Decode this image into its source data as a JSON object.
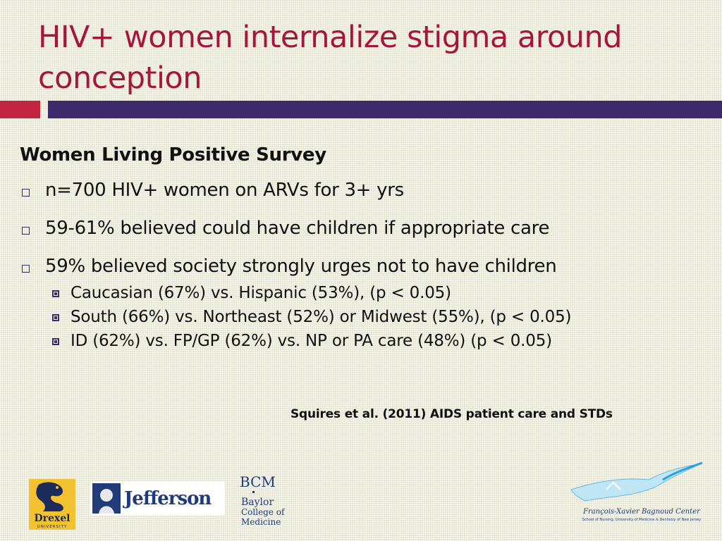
{
  "slide": {
    "title": "HIV+ women internalize stigma around conception",
    "heading": "Women Living Positive Survey",
    "bullets": [
      "n=700 HIV+ women on ARVs for 3+ yrs",
      "59-61% believed could have children if appropriate care",
      "59% believed society strongly urges not to have children"
    ],
    "sub_bullets": [
      "Caucasian (67%) vs. Hispanic (53%), (p < 0.05)",
      "South (66%) vs. Northeast (52%) or Midwest (55%), (p < 0.05)",
      "ID (62%) vs. FP/GP (62%) vs. NP or PA care (48%) (p < 0.05)"
    ],
    "citation": "Squires et al. (2011) AIDS patient care and STDs"
  },
  "logos": {
    "drexel": {
      "name": "Drexel",
      "sub": "UNIVERSITY"
    },
    "jefferson": {
      "name": "Jefferson"
    },
    "bcm": {
      "abbr": "BCM",
      "line1": "Baylor",
      "line2": "College of",
      "line3": "Medicine"
    },
    "fxb": {
      "name": "François-Xavier Bagnoud Center",
      "sub": "School of Nursing, University of Medicine & Dentistry of New Jersey"
    }
  },
  "colors": {
    "title": "#a5173a",
    "band_red": "#c1253f",
    "band_purple": "#3e2a6b",
    "background": "#e4e4cf"
  }
}
